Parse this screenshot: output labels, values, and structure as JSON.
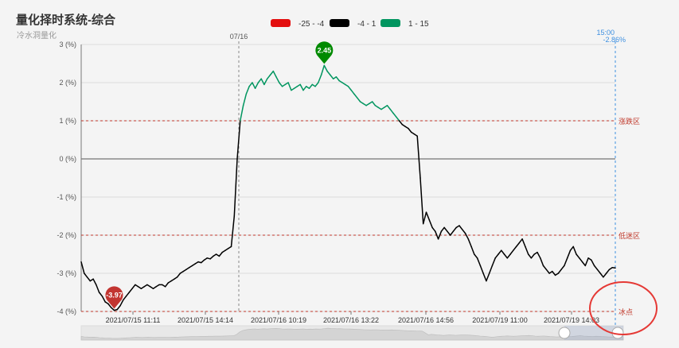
{
  "header": {
    "title": "量化择时系统-综合",
    "subtitle": "冷水洞量化"
  },
  "legend": [
    {
      "label": "-25 - -4",
      "color": "#e30e0e"
    },
    {
      "label": "-4 - 1",
      "color": "#000000"
    },
    {
      "label": "1 - 15",
      "color": "#00955f"
    }
  ],
  "chart_data": {
    "type": "line",
    "title": "量化择时系统-综合",
    "subtitle": "冷水洞量化",
    "ylim": [
      -4,
      3
    ],
    "yticks": [
      "3 (%)",
      "2 (%)",
      "1 (%)",
      "0 (%)",
      "-1 (%)",
      "-2 (%)",
      "-3 (%)",
      "-4 (%)"
    ],
    "xticks": [
      "2021/07/15 11:11",
      "2021/07/15 14:14",
      "2021/07/16 10:19",
      "2021/07/16 13:22",
      "2021/07/16 14:56",
      "2021/07/19 11:00",
      "2021/07/19 14:03"
    ],
    "grid": true,
    "color_ranges": [
      {
        "label": "-25 - -4",
        "min": -25,
        "max": -4,
        "color": "#e30e0e"
      },
      {
        "label": "-4 - 1",
        "min": -4,
        "max": 1,
        "color": "#000000"
      },
      {
        "label": "1 - 15",
        "min": 1,
        "max": 15,
        "color": "#00955f"
      }
    ],
    "mark_lines": [
      {
        "value": 1,
        "label": "涨跌区"
      },
      {
        "value": -2,
        "label": "低迷区"
      },
      {
        "value": -4,
        "label": "冰点"
      }
    ],
    "markers": [
      {
        "label": "2.45",
        "value": 2.45,
        "color": "#008a00"
      },
      {
        "label": "-3.97",
        "value": -3.97,
        "color": "#c23531"
      }
    ],
    "date_marker": {
      "label": "07/16"
    },
    "pointer": {
      "time": "15:00",
      "value": "-2.86%"
    },
    "values": [
      -2.7,
      -3.0,
      -3.1,
      -3.2,
      -3.15,
      -3.3,
      -3.5,
      -3.6,
      -3.75,
      -3.8,
      -3.9,
      -3.97,
      -3.95,
      -3.85,
      -3.7,
      -3.6,
      -3.5,
      -3.4,
      -3.3,
      -3.35,
      -3.4,
      -3.35,
      -3.3,
      -3.35,
      -3.4,
      -3.35,
      -3.3,
      -3.3,
      -3.35,
      -3.25,
      -3.2,
      -3.15,
      -3.1,
      -3.0,
      -2.95,
      -2.9,
      -2.85,
      -2.8,
      -2.75,
      -2.7,
      -2.72,
      -2.65,
      -2.6,
      -2.62,
      -2.55,
      -2.5,
      -2.55,
      -2.45,
      -2.4,
      -2.35,
      -2.3,
      -1.5,
      0.0,
      1.0,
      1.4,
      1.7,
      1.9,
      2.0,
      1.85,
      2.0,
      2.1,
      1.95,
      2.1,
      2.2,
      2.3,
      2.15,
      2.0,
      1.9,
      1.95,
      2.0,
      1.8,
      1.85,
      1.9,
      1.95,
      1.8,
      1.9,
      1.85,
      1.95,
      1.9,
      2.0,
      2.2,
      2.45,
      2.3,
      2.2,
      2.1,
      2.15,
      2.05,
      2.0,
      1.95,
      1.9,
      1.8,
      1.7,
      1.6,
      1.5,
      1.45,
      1.4,
      1.45,
      1.5,
      1.4,
      1.35,
      1.3,
      1.35,
      1.4,
      1.3,
      1.2,
      1.1,
      1.0,
      0.9,
      0.85,
      0.8,
      0.7,
      0.65,
      0.6,
      -0.5,
      -1.7,
      -1.4,
      -1.6,
      -1.8,
      -1.9,
      -2.1,
      -1.9,
      -1.8,
      -1.9,
      -2.0,
      -1.9,
      -1.8,
      -1.75,
      -1.85,
      -1.95,
      -2.1,
      -2.3,
      -2.5,
      -2.6,
      -2.8,
      -3.0,
      -3.2,
      -3.0,
      -2.8,
      -2.6,
      -2.5,
      -2.4,
      -2.5,
      -2.6,
      -2.5,
      -2.4,
      -2.3,
      -2.2,
      -2.1,
      -2.3,
      -2.5,
      -2.6,
      -2.5,
      -2.45,
      -2.6,
      -2.8,
      -2.9,
      -3.0,
      -2.95,
      -3.05,
      -3.0,
      -2.9,
      -2.8,
      -2.6,
      -2.4,
      -2.3,
      -2.5,
      -2.6,
      -2.7,
      -2.8,
      -2.6,
      -2.65,
      -2.8,
      -2.9,
      -3.0,
      -3.1,
      -3.0,
      -2.9,
      -2.85,
      -2.86
    ]
  }
}
